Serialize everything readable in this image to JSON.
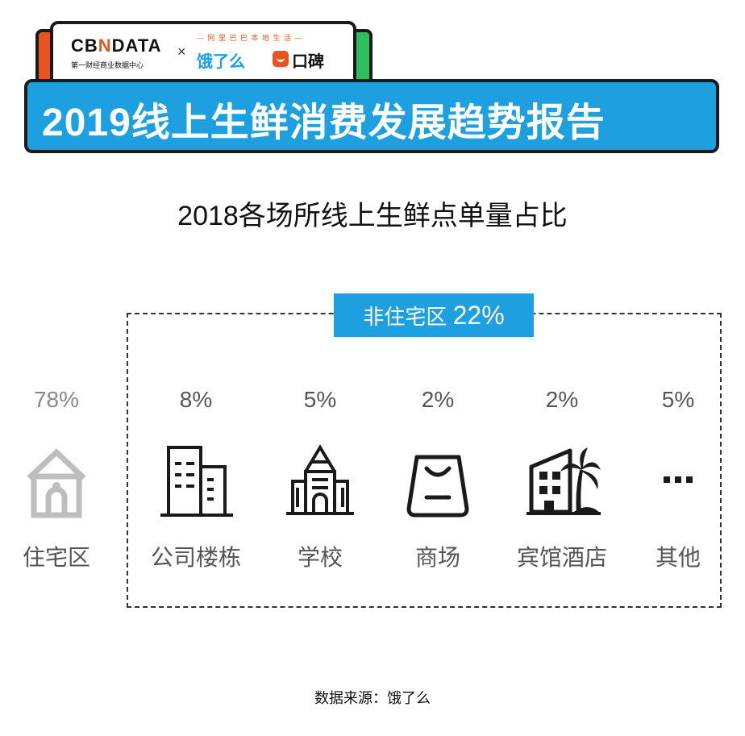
{
  "header": {
    "cbn_logo_pre": "CB",
    "cbn_logo_n": "N",
    "cbn_logo_post": "DATA",
    "cbn_subtitle": "第一财经商业数据中心",
    "times": "×",
    "alibaba_tagline": "— 阿 里 巴 巴 本 地 生 活 —",
    "eleme": "饿了么",
    "koubei": "口碑",
    "report_title": "2019线上生鲜消费发展趋势报告"
  },
  "chart_data": {
    "type": "pictogram",
    "title": "2018各场所线上生鲜点单量占比",
    "unit": "%",
    "group": {
      "label": "非住宅区",
      "value_label": "22%",
      "value": 22
    },
    "categories": [
      "住宅区",
      "公司楼栋",
      "学校",
      "商场",
      "宾馆酒店",
      "其他"
    ],
    "values": [
      78,
      8,
      5,
      2,
      2,
      5
    ],
    "value_labels": [
      "78%",
      "8%",
      "5%",
      "2%",
      "2%",
      "5%"
    ],
    "icons": [
      "house-icon",
      "office-building-icon",
      "school-icon",
      "shopping-bag-icon",
      "hotel-palm-icon",
      "more-dots-icon"
    ],
    "colors": {
      "accent": "#1e9fe0",
      "home": "#bdbdbd",
      "icon": "#1a1a1a",
      "text": "#555555"
    }
  },
  "footer": {
    "source": "数据来源：饿了么"
  }
}
